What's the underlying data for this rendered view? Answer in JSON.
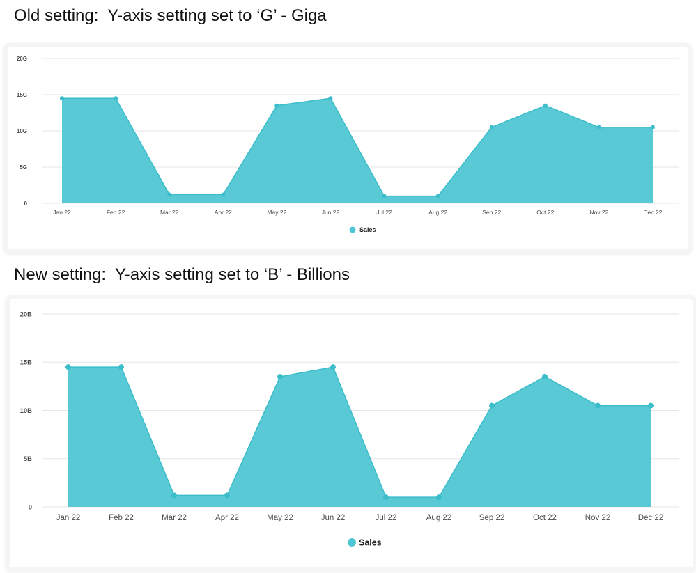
{
  "headings": {
    "old": "Old setting:  Y-axis setting set to ‘G’ - Giga",
    "new": "New setting:  Y-axis setting set to ‘B’ - Billions"
  },
  "colors": {
    "series": "#4fc6d3",
    "series_stroke": "#3bbdca",
    "grid": "#e6e6e6",
    "axis_text": "#4a4a4a"
  },
  "chart_data": [
    {
      "type": "area",
      "categories": [
        "Jan 22",
        "Feb 22",
        "Mar 22",
        "Apr 22",
        "May 22",
        "Jun 22",
        "Jul 22",
        "Aug 22",
        "Sep 22",
        "Oct 22",
        "Nov 22",
        "Dec 22"
      ],
      "series": [
        {
          "name": "Sales",
          "values": [
            14.5,
            14.5,
            1.2,
            1.2,
            13.5,
            14.5,
            1.0,
            1.0,
            10.5,
            13.5,
            10.5,
            10.5
          ]
        }
      ],
      "yticks": [
        "0",
        "5G",
        "10G",
        "15G",
        "20G"
      ],
      "ylim": [
        0,
        20
      ],
      "grid": true,
      "legend": "bottom-center"
    },
    {
      "type": "area",
      "categories": [
        "Jan 22",
        "Feb 22",
        "Mar 22",
        "Apr 22",
        "May 22",
        "Jun 22",
        "Jul 22",
        "Aug 22",
        "Sep 22",
        "Oct 22",
        "Nov 22",
        "Dec 22"
      ],
      "series": [
        {
          "name": "Sales",
          "values": [
            14.5,
            14.5,
            1.2,
            1.2,
            13.5,
            14.5,
            1.0,
            1.0,
            10.5,
            13.5,
            10.5,
            10.5
          ]
        }
      ],
      "yticks": [
        "0",
        "5B",
        "10B",
        "15B",
        "20B"
      ],
      "ylim": [
        0,
        20
      ],
      "grid": true,
      "legend": "bottom-center"
    }
  ]
}
